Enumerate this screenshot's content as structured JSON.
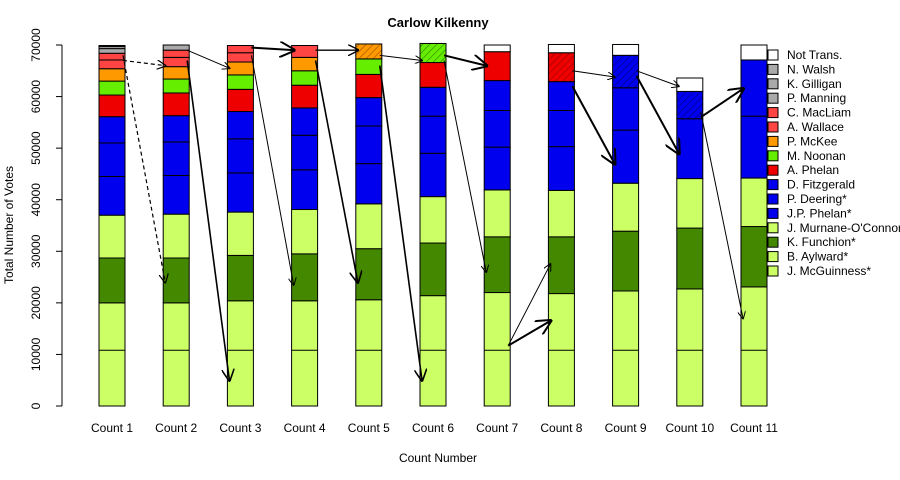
{
  "chart_data": {
    "type": "bar",
    "stacked": true,
    "title": "Carlow Kilkenny",
    "xlabel": "Count Number",
    "ylabel": "Total Number of Votes",
    "ylim": [
      0,
      70000
    ],
    "yticks": [
      0,
      10000,
      20000,
      30000,
      40000,
      50000,
      60000,
      70000
    ],
    "categories": [
      "Count 1",
      "Count 2",
      "Count 3",
      "Count 4",
      "Count 5",
      "Count 6",
      "Count 7",
      "Count 8",
      "Count 9",
      "Count 10",
      "Count 11"
    ],
    "legend_position": "right",
    "series": [
      {
        "name": "J. McGuinness*",
        "color": "#ccff66",
        "values": [
          20000,
          20000,
          20400,
          20400,
          20600,
          21400,
          22000,
          21800,
          22300,
          22700,
          23100
        ],
        "quota_line": 10800
      },
      {
        "name": "B. Aylward*",
        "color": "#ccff66",
        "values": [
          0,
          0,
          0,
          0,
          0,
          0,
          0,
          0,
          0,
          0,
          0
        ]
      },
      {
        "name": "K. Funchion*",
        "color": "#448800",
        "values": [
          8700,
          8700,
          8800,
          9100,
          9900,
          10200,
          10800,
          11000,
          11600,
          11800,
          11700
        ]
      },
      {
        "name": "J. Murnane-O'Connor",
        "color": "#ccff66",
        "values": [
          8300,
          8500,
          8400,
          8600,
          8700,
          9000,
          9100,
          9000,
          9300,
          9600,
          9400
        ]
      },
      {
        "name": "J.P. Phelan*",
        "color": "#0000ee",
        "values": [
          7500,
          7500,
          7600,
          7700,
          7800,
          8400,
          8300,
          8500,
          10300,
          11600,
          12000
        ]
      },
      {
        "name": "P. Deering*",
        "color": "#0000ee",
        "values": [
          6500,
          6500,
          6600,
          6700,
          7300,
          7200,
          7100,
          7000,
          8200,
          5300,
          0
        ]
      },
      {
        "name": "D. Fitzgerald",
        "color": "#0000ee",
        "values": [
          5100,
          5100,
          5300,
          5300,
          5500,
          5600,
          5800,
          5600,
          6300,
          0,
          10900
        ]
      },
      {
        "name": "A. Phelan",
        "color": "#ee0000",
        "values": [
          4200,
          4400,
          4300,
          4400,
          4500,
          4800,
          5600,
          5600,
          0,
          0,
          0
        ]
      },
      {
        "name": "M. Noonan",
        "color": "#66ee00",
        "values": [
          2700,
          2700,
          2800,
          2800,
          3000,
          3700,
          0,
          0,
          0,
          0,
          0
        ]
      },
      {
        "name": "P. McKee",
        "color": "#ff9900",
        "values": [
          2400,
          2400,
          2500,
          2600,
          2900,
          0,
          0,
          0,
          0,
          0,
          0
        ]
      },
      {
        "name": "A. Wallace",
        "color": "#ff4444",
        "values": [
          1700,
          1800,
          1800,
          2300,
          0,
          0,
          0,
          0,
          0,
          0,
          0
        ]
      },
      {
        "name": "C. MacLiam",
        "color": "#ff4444",
        "values": [
          1300,
          1400,
          1400,
          0,
          0,
          0,
          0,
          0,
          0,
          0,
          0
        ]
      },
      {
        "name": "P. Manning",
        "color": "#aaaaaa",
        "values": [
          900,
          1000,
          0,
          0,
          0,
          0,
          0,
          0,
          0,
          0,
          0
        ]
      },
      {
        "name": "K. Gilligan",
        "color": "#aaaaaa",
        "values": [
          400,
          0,
          0,
          0,
          0,
          0,
          0,
          0,
          0,
          0,
          0
        ]
      },
      {
        "name": "N. Walsh",
        "color": "#aaaaaa",
        "values": [
          200,
          0,
          0,
          0,
          0,
          0,
          0,
          0,
          0,
          0,
          0
        ]
      },
      {
        "name": "Not Trans.",
        "color": "#ffffff",
        "values": [
          0,
          0,
          0,
          0,
          0,
          0,
          1300,
          1600,
          2100,
          2600,
          2900
        ]
      }
    ]
  }
}
